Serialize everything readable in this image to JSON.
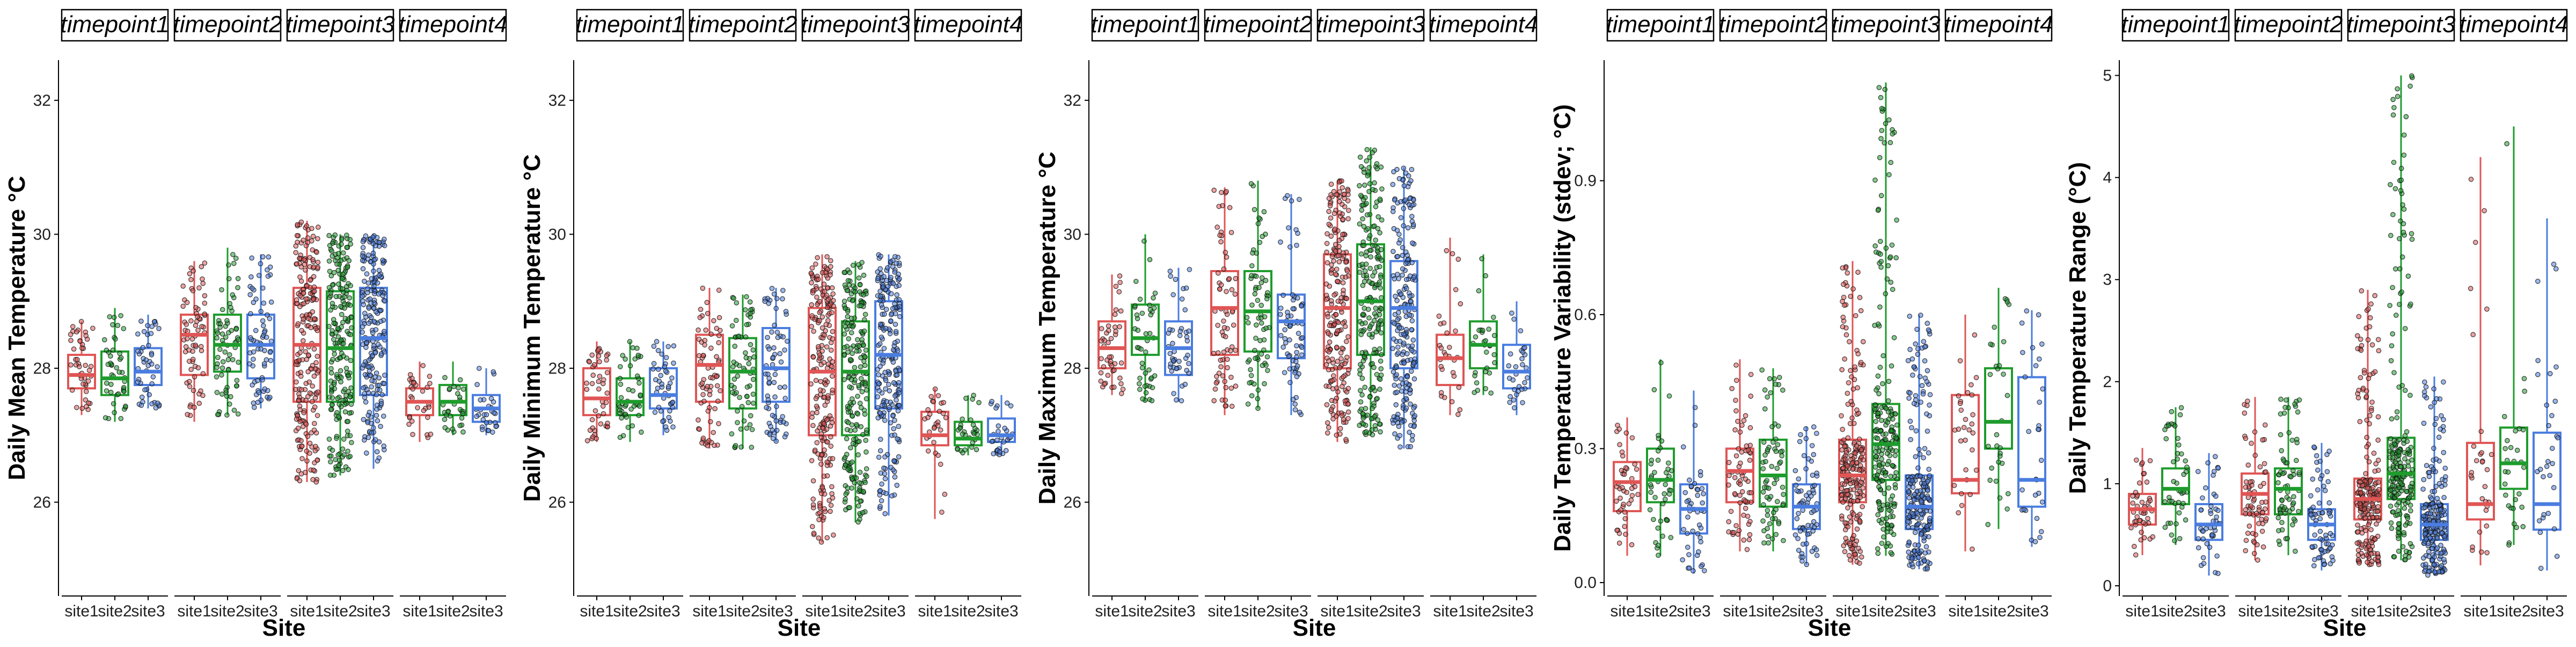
{
  "chart_data": [
    {
      "type": "boxplot",
      "ylabel": "Daily Mean Temperature °C",
      "xlabel": "Site",
      "ylim": [
        24.6,
        32.6
      ],
      "yticks": [
        26,
        28,
        30,
        32
      ],
      "panels": [
        {
          "label": "timepoint1",
          "sites": [
            {
              "site": "site1",
              "q1": 27.7,
              "median": 27.9,
              "q3": 28.2,
              "lo": 27.3,
              "hi": 28.7,
              "npts": 45
            },
            {
              "site": "site2",
              "q1": 27.6,
              "median": 27.85,
              "q3": 28.25,
              "lo": 27.2,
              "hi": 28.9,
              "npts": 45
            },
            {
              "site": "site3",
              "q1": 27.75,
              "median": 27.95,
              "q3": 28.3,
              "lo": 27.4,
              "hi": 28.8,
              "npts": 45
            }
          ]
        },
        {
          "label": "timepoint2",
          "sites": [
            {
              "site": "site1",
              "q1": 27.9,
              "median": 28.5,
              "q3": 28.8,
              "lo": 27.2,
              "hi": 29.6,
              "npts": 70
            },
            {
              "site": "site2",
              "q1": 27.95,
              "median": 28.35,
              "q3": 28.8,
              "lo": 27.3,
              "hi": 29.8,
              "npts": 70
            },
            {
              "site": "site3",
              "q1": 27.85,
              "median": 28.35,
              "q3": 28.8,
              "lo": 27.4,
              "hi": 29.7,
              "npts": 70
            }
          ]
        },
        {
          "label": "timepoint3",
          "sites": [
            {
              "site": "site1",
              "q1": 27.5,
              "median": 28.35,
              "q3": 29.2,
              "lo": 26.3,
              "hi": 30.2,
              "npts": 220
            },
            {
              "site": "site2",
              "q1": 27.5,
              "median": 28.3,
              "q3": 29.15,
              "lo": 26.4,
              "hi": 30.0,
              "npts": 220
            },
            {
              "site": "site3",
              "q1": 27.6,
              "median": 28.45,
              "q3": 29.2,
              "lo": 26.5,
              "hi": 30.0,
              "npts": 220
            }
          ]
        },
        {
          "label": "timepoint4",
          "sites": [
            {
              "site": "site1",
              "q1": 27.3,
              "median": 27.5,
              "q3": 27.7,
              "lo": 26.9,
              "hi": 28.1,
              "npts": 30
            },
            {
              "site": "site2",
              "q1": 27.3,
              "median": 27.5,
              "q3": 27.75,
              "lo": 27.0,
              "hi": 28.1,
              "npts": 30
            },
            {
              "site": "site3",
              "q1": 27.2,
              "median": 27.4,
              "q3": 27.6,
              "lo": 27.0,
              "hi": 28.0,
              "npts": 30
            }
          ]
        }
      ]
    },
    {
      "type": "boxplot",
      "ylabel": "Daily Minimum Temperature °C",
      "xlabel": "Site",
      "ylim": [
        24.6,
        32.6
      ],
      "yticks": [
        26,
        28,
        30,
        32
      ],
      "panels": [
        {
          "label": "timepoint1",
          "sites": [
            {
              "site": "site1",
              "q1": 27.3,
              "median": 27.55,
              "q3": 28.0,
              "lo": 26.9,
              "hi": 28.4,
              "npts": 45
            },
            {
              "site": "site2",
              "q1": 27.3,
              "median": 27.5,
              "q3": 27.85,
              "lo": 26.9,
              "hi": 28.4,
              "npts": 45
            },
            {
              "site": "site3",
              "q1": 27.4,
              "median": 27.6,
              "q3": 28.0,
              "lo": 27.0,
              "hi": 28.4,
              "npts": 45
            }
          ]
        },
        {
          "label": "timepoint2",
          "sites": [
            {
              "site": "site1",
              "q1": 27.5,
              "median": 28.05,
              "q3": 28.5,
              "lo": 26.8,
              "hi": 29.2,
              "npts": 70
            },
            {
              "site": "site2",
              "q1": 27.4,
              "median": 27.95,
              "q3": 28.45,
              "lo": 26.8,
              "hi": 29.1,
              "npts": 70
            },
            {
              "site": "site3",
              "q1": 27.5,
              "median": 28.0,
              "q3": 28.6,
              "lo": 26.9,
              "hi": 29.2,
              "npts": 70
            }
          ]
        },
        {
          "label": "timepoint3",
          "sites": [
            {
              "site": "site1",
              "q1": 27.0,
              "median": 27.95,
              "q3": 28.9,
              "lo": 25.4,
              "hi": 29.7,
              "npts": 220
            },
            {
              "site": "site2",
              "q1": 27.0,
              "median": 27.95,
              "q3": 28.7,
              "lo": 25.7,
              "hi": 29.6,
              "npts": 220
            },
            {
              "site": "site3",
              "q1": 27.4,
              "median": 28.2,
              "q3": 29.0,
              "lo": 25.8,
              "hi": 29.7,
              "npts": 220
            }
          ]
        },
        {
          "label": "timepoint4",
          "sites": [
            {
              "site": "site1",
              "q1": 26.85,
              "median": 27.0,
              "q3": 27.35,
              "lo": 25.75,
              "hi": 27.7,
              "npts": 30
            },
            {
              "site": "site2",
              "q1": 26.85,
              "median": 26.95,
              "q3": 27.2,
              "lo": 26.7,
              "hi": 27.6,
              "npts": 30
            },
            {
              "site": "site3",
              "q1": 26.9,
              "median": 27.0,
              "q3": 27.25,
              "lo": 26.7,
              "hi": 27.6,
              "npts": 30
            }
          ]
        }
      ]
    },
    {
      "type": "boxplot",
      "ylabel": "Daily Maximum Temperature °C",
      "xlabel": "Site",
      "ylim": [
        24.6,
        32.6
      ],
      "yticks": [
        26,
        28,
        30,
        32
      ],
      "panels": [
        {
          "label": "timepoint1",
          "sites": [
            {
              "site": "site1",
              "q1": 28.0,
              "median": 28.3,
              "q3": 28.7,
              "lo": 27.6,
              "hi": 29.4,
              "npts": 45
            },
            {
              "site": "site2",
              "q1": 28.2,
              "median": 28.45,
              "q3": 28.95,
              "lo": 27.5,
              "hi": 30.0,
              "npts": 45
            },
            {
              "site": "site3",
              "q1": 27.9,
              "median": 28.3,
              "q3": 28.7,
              "lo": 27.5,
              "hi": 29.5,
              "npts": 45
            }
          ]
        },
        {
          "label": "timepoint2",
          "sites": [
            {
              "site": "site1",
              "q1": 28.2,
              "median": 28.9,
              "q3": 29.45,
              "lo": 27.3,
              "hi": 30.7,
              "npts": 70
            },
            {
              "site": "site2",
              "q1": 28.25,
              "median": 28.85,
              "q3": 29.45,
              "lo": 27.4,
              "hi": 30.8,
              "npts": 70
            },
            {
              "site": "site3",
              "q1": 28.15,
              "median": 28.7,
              "q3": 29.1,
              "lo": 27.3,
              "hi": 30.6,
              "npts": 70
            }
          ]
        },
        {
          "label": "timepoint3",
          "sites": [
            {
              "site": "site1",
              "q1": 28.0,
              "median": 28.9,
              "q3": 29.7,
              "lo": 26.9,
              "hi": 30.8,
              "npts": 220
            },
            {
              "site": "site2",
              "q1": 28.2,
              "median": 29.0,
              "q3": 29.85,
              "lo": 27.0,
              "hi": 31.3,
              "npts": 220
            },
            {
              "site": "site3",
              "q1": 28.0,
              "median": 28.9,
              "q3": 29.6,
              "lo": 26.8,
              "hi": 31.0,
              "npts": 220
            }
          ]
        },
        {
          "label": "timepoint4",
          "sites": [
            {
              "site": "site1",
              "q1": 27.75,
              "median": 28.15,
              "q3": 28.5,
              "lo": 27.3,
              "hi": 29.95,
              "npts": 30
            },
            {
              "site": "site2",
              "q1": 28.0,
              "median": 28.35,
              "q3": 28.7,
              "lo": 27.6,
              "hi": 29.7,
              "npts": 30
            },
            {
              "site": "site3",
              "q1": 27.7,
              "median": 27.95,
              "q3": 28.35,
              "lo": 27.3,
              "hi": 29.0,
              "npts": 30
            }
          ]
        }
      ]
    },
    {
      "type": "boxplot",
      "ylabel": "Daily Temperature Variability (stdev; °C)",
      "xlabel": "Site",
      "ylim": [
        -0.03,
        1.17
      ],
      "yticks": [
        0.0,
        0.3,
        0.6,
        0.9
      ],
      "panels": [
        {
          "label": "timepoint1",
          "sites": [
            {
              "site": "site1",
              "q1": 0.16,
              "median": 0.225,
              "q3": 0.27,
              "lo": 0.06,
              "hi": 0.37,
              "npts": 45
            },
            {
              "site": "site2",
              "q1": 0.18,
              "median": 0.23,
              "q3": 0.3,
              "lo": 0.06,
              "hi": 0.5,
              "npts": 45
            },
            {
              "site": "site3",
              "q1": 0.11,
              "median": 0.165,
              "q3": 0.22,
              "lo": 0.02,
              "hi": 0.43,
              "npts": 45
            }
          ]
        },
        {
          "label": "timepoint2",
          "sites": [
            {
              "site": "site1",
              "q1": 0.18,
              "median": 0.25,
              "q3": 0.3,
              "lo": 0.07,
              "hi": 0.5,
              "npts": 70
            },
            {
              "site": "site2",
              "q1": 0.17,
              "median": 0.24,
              "q3": 0.32,
              "lo": 0.07,
              "hi": 0.48,
              "npts": 70
            },
            {
              "site": "site3",
              "q1": 0.12,
              "median": 0.17,
              "q3": 0.22,
              "lo": 0.04,
              "hi": 0.35,
              "npts": 70
            }
          ]
        },
        {
          "label": "timepoint3",
          "sites": [
            {
              "site": "site1",
              "q1": 0.18,
              "median": 0.24,
              "q3": 0.32,
              "lo": 0.04,
              "hi": 0.72,
              "npts": 220
            },
            {
              "site": "site2",
              "q1": 0.23,
              "median": 0.31,
              "q3": 0.4,
              "lo": 0.06,
              "hi": 1.12,
              "npts": 220
            },
            {
              "site": "site3",
              "q1": 0.12,
              "median": 0.17,
              "q3": 0.24,
              "lo": 0.03,
              "hi": 0.6,
              "npts": 220
            }
          ]
        },
        {
          "label": "timepoint4",
          "sites": [
            {
              "site": "site1",
              "q1": 0.2,
              "median": 0.23,
              "q3": 0.42,
              "lo": 0.07,
              "hi": 0.6,
              "npts": 30
            },
            {
              "site": "site2",
              "q1": 0.3,
              "median": 0.36,
              "q3": 0.48,
              "lo": 0.12,
              "hi": 0.66,
              "npts": 30
            },
            {
              "site": "site3",
              "q1": 0.17,
              "median": 0.23,
              "q3": 0.46,
              "lo": 0.08,
              "hi": 0.61,
              "npts": 30
            }
          ]
        }
      ]
    },
    {
      "type": "boxplot",
      "ylabel": "Daily Temperature Range (°C)",
      "xlabel": "Site",
      "ylim": [
        -0.1,
        5.15
      ],
      "yticks": [
        0,
        1,
        2,
        3,
        4,
        5
      ],
      "panels": [
        {
          "label": "timepoint1",
          "sites": [
            {
              "site": "site1",
              "q1": 0.6,
              "median": 0.75,
              "q3": 0.9,
              "lo": 0.3,
              "hi": 1.35,
              "npts": 45
            },
            {
              "site": "site2",
              "q1": 0.8,
              "median": 0.95,
              "q3": 1.15,
              "lo": 0.4,
              "hi": 1.75,
              "npts": 45
            },
            {
              "site": "site3",
              "q1": 0.45,
              "median": 0.6,
              "q3": 0.8,
              "lo": 0.1,
              "hi": 1.3,
              "npts": 45
            }
          ]
        },
        {
          "label": "timepoint2",
          "sites": [
            {
              "site": "site1",
              "q1": 0.7,
              "median": 0.9,
              "q3": 1.1,
              "lo": 0.25,
              "hi": 1.85,
              "npts": 70
            },
            {
              "site": "site2",
              "q1": 0.7,
              "median": 0.95,
              "q3": 1.15,
              "lo": 0.3,
              "hi": 1.85,
              "npts": 70
            },
            {
              "site": "site3",
              "q1": 0.45,
              "median": 0.6,
              "q3": 0.75,
              "lo": 0.15,
              "hi": 1.4,
              "npts": 70
            }
          ]
        },
        {
          "label": "timepoint3",
          "sites": [
            {
              "site": "site1",
              "q1": 0.65,
              "median": 0.85,
              "q3": 1.05,
              "lo": 0.2,
              "hi": 2.9,
              "npts": 220
            },
            {
              "site": "site2",
              "q1": 0.85,
              "median": 1.1,
              "q3": 1.45,
              "lo": 0.25,
              "hi": 5.0,
              "npts": 220
            },
            {
              "site": "site3",
              "q1": 0.45,
              "median": 0.6,
              "q3": 0.8,
              "lo": 0.1,
              "hi": 2.05,
              "npts": 220
            }
          ]
        },
        {
          "label": "timepoint4",
          "sites": [
            {
              "site": "site1",
              "q1": 0.65,
              "median": 0.8,
              "q3": 1.4,
              "lo": 0.2,
              "hi": 4.2,
              "npts": 30
            },
            {
              "site": "site2",
              "q1": 0.95,
              "median": 1.2,
              "q3": 1.55,
              "lo": 0.4,
              "hi": 4.5,
              "npts": 30
            },
            {
              "site": "site3",
              "q1": 0.55,
              "median": 0.8,
              "q3": 1.5,
              "lo": 0.15,
              "hi": 3.6,
              "npts": 30
            }
          ]
        }
      ]
    }
  ],
  "colors": {
    "site1": "#e05555",
    "site2": "#1e9c2c",
    "site3": "#4a7de0"
  }
}
